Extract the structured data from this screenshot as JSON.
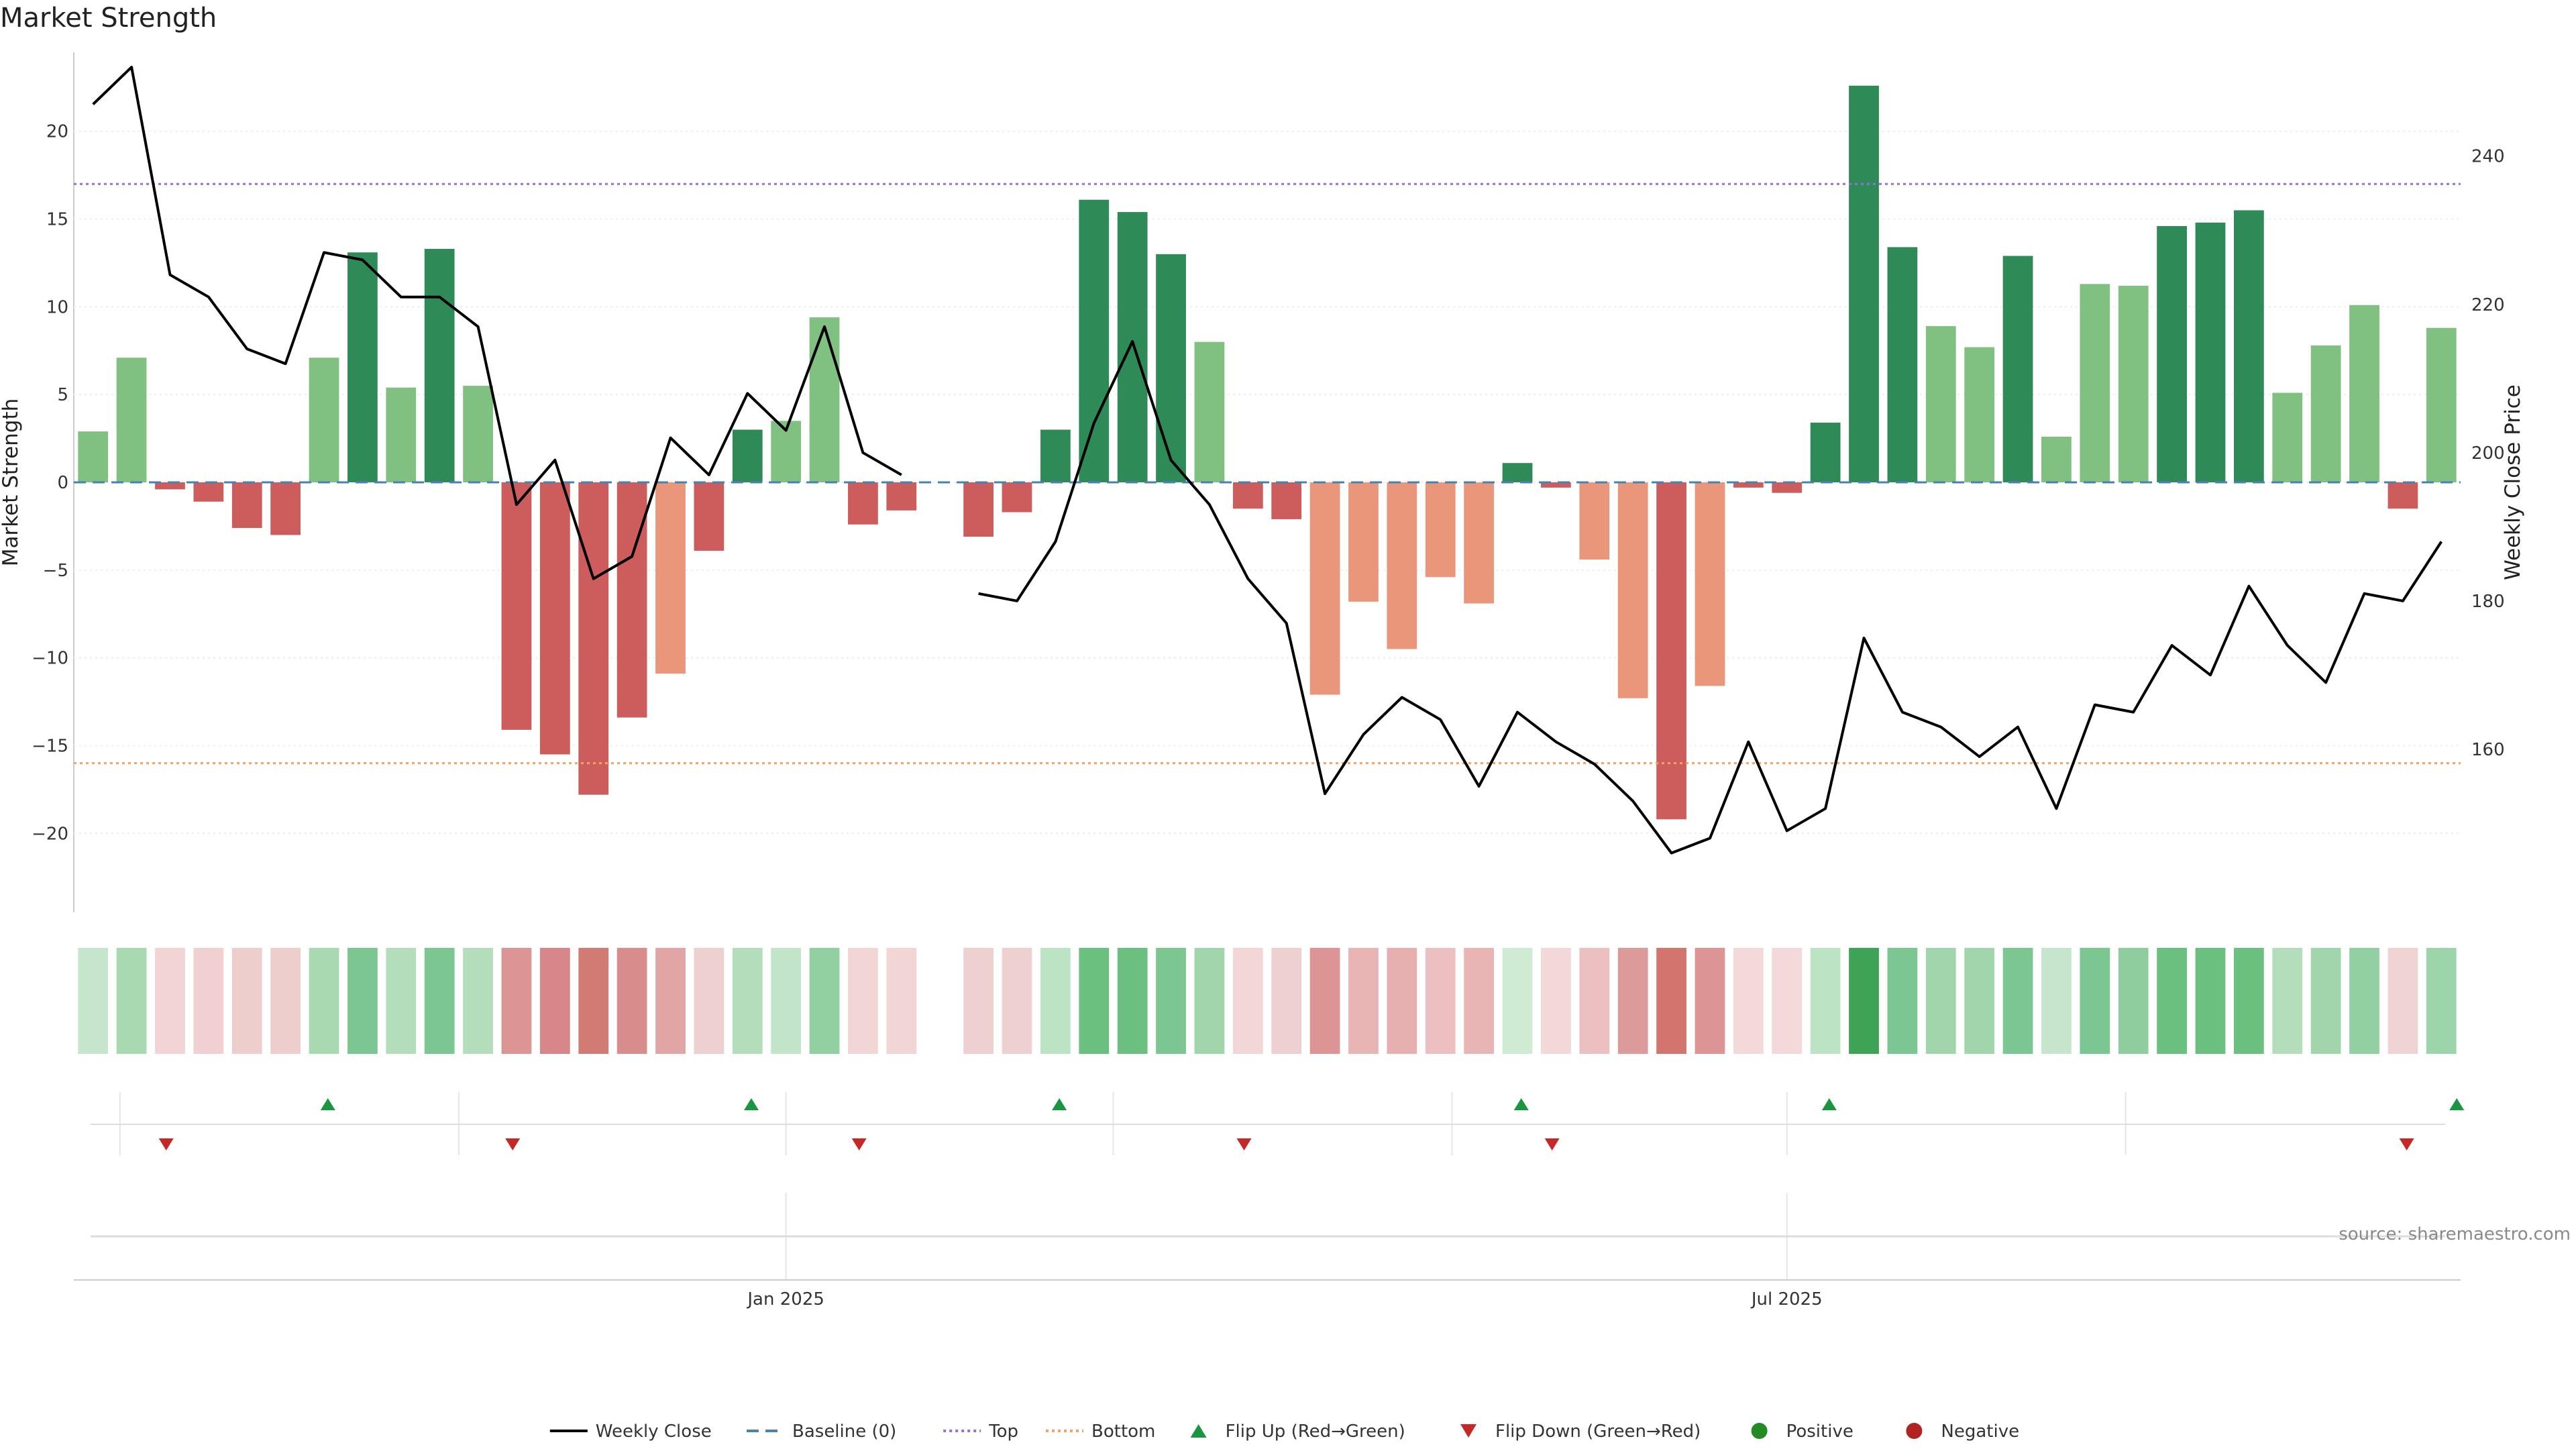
{
  "chart_data": {
    "type": "bar",
    "title": "Market Strength",
    "ylabel": "Market Strength",
    "y2label": "Weekly Close Price",
    "ylim": [
      -24.5,
      24.5
    ],
    "y2lim": [
      138,
      254
    ],
    "yticks": [
      -20,
      -15,
      -10,
      -5,
      0,
      5,
      10,
      15,
      20
    ],
    "y2ticks": [
      160,
      180,
      200,
      220,
      240
    ],
    "top_threshold": 17,
    "bottom_threshold": -16,
    "x_tick_labels": [
      {
        "label": "Jan 2025",
        "week": 18.5
      },
      {
        "label": "Jul 2025",
        "week": 44.5
      }
    ],
    "x_minor_weeks": [
      1.2,
      10,
      18.5,
      27,
      35.8,
      44.5,
      53.3
    ],
    "bars": [
      2.9,
      7.1,
      -0.4,
      -1.1,
      -2.6,
      -3.0,
      7.1,
      13.1,
      5.4,
      13.3,
      5.5,
      -14.1,
      -15.5,
      -17.8,
      -13.4,
      -10.9,
      -3.9,
      3.0,
      3.5,
      9.4,
      -2.4,
      -1.6,
      null,
      -3.1,
      -1.7,
      3.0,
      16.1,
      15.4,
      13.0,
      8.0,
      -1.5,
      -2.1,
      -12.1,
      -6.8,
      -9.5,
      -5.4,
      -6.9,
      1.1,
      -0.3,
      -4.4,
      -12.3,
      -19.2,
      -11.6,
      -0.3,
      -0.6,
      3.4,
      22.6,
      13.4,
      8.9,
      7.7,
      12.9,
      2.6,
      11.3,
      11.2,
      14.6,
      14.8,
      15.5,
      5.1,
      7.8,
      10.1,
      -1.5,
      8.8
    ],
    "close": [
      247,
      252,
      224,
      221,
      214,
      212,
      227,
      226,
      221,
      221,
      217,
      193,
      199,
      183,
      186,
      202,
      197,
      208,
      203,
      217,
      200,
      197,
      null,
      181,
      180,
      188,
      204,
      215,
      199,
      193,
      183,
      177,
      154,
      162,
      167,
      164,
      155,
      165,
      161,
      158,
      153,
      146,
      148,
      161,
      149,
      152,
      175,
      165,
      163,
      159,
      163,
      152,
      166,
      165,
      174,
      170,
      182,
      174,
      169,
      181,
      180,
      188
    ],
    "heat_colors": [
      "#c5e6cc",
      "#a8d9b1",
      "#f2d4d4",
      "#f0d0d0",
      "#eecdcd",
      "#eecdcd",
      "#a8d9b1",
      "#7cc691",
      "#b3ddbb",
      "#7cc691",
      "#b3ddbb",
      "#dd9494",
      "#d9868a",
      "#d27a74",
      "#d98c8c",
      "#e2a5a5",
      "#efd0d0",
      "#b3ddbb",
      "#c2e5ca",
      "#93d0a1",
      "#f2d6d6",
      "#f2d6d6",
      null,
      "#efd0d0",
      "#efd0d0",
      "#bde3c5",
      "#6bbf7f",
      "#6bbf7f",
      "#7cc691",
      "#a1d6ac",
      "#f3d6d6",
      "#efd0d0",
      "#dd9494",
      "#e8b4b4",
      "#e6b0b0",
      "#ecc0c0",
      "#e8b4b4",
      "#cfebd4",
      "#f2d8d8",
      "#ecc0c0",
      "#dd9a9a",
      "#d4746f",
      "#dd9494",
      "#f3d9d9",
      "#f3d9d9",
      "#bde3c5",
      "#3fa356",
      "#7cc691",
      "#a1d6ac",
      "#a1d6ac",
      "#7cc691",
      "#c5e6cc",
      "#7cc691",
      "#8fcc9e",
      "#6bbf7f",
      "#6bbf7f",
      "#6bbf7f",
      "#b3ddbb",
      "#a1d6ac",
      "#93d0a1",
      "#f0d3d3",
      "#9cd5a9"
    ],
    "flip_up_weeks": [
      6.6,
      17.6,
      25.6,
      37.6,
      45.6,
      61.9
    ],
    "flip_down_weeks": [
      2.4,
      11.4,
      20.4,
      30.4,
      38.4,
      60.6
    ],
    "colors": {
      "positive_strong": "#2e8b57",
      "positive_weak": "#80c080",
      "negative_strong": "#cd5c5c",
      "negative_weak": "#e9967a",
      "close_line": "#000000",
      "baseline": "#4682b4",
      "top": "#9370db",
      "bottom": "#f4a460",
      "flip_up": "#1a9641",
      "flip_down": "#c62828",
      "positive_dot": "#228b22",
      "negative_dot": "#b22222"
    },
    "legend": [
      {
        "label": "Weekly Close",
        "kind": "line-solid",
        "color_key": "close_line"
      },
      {
        "label": "Baseline (0)",
        "kind": "line-dash",
        "color_key": "baseline"
      },
      {
        "label": "Top",
        "kind": "line-dot",
        "color_key": "top"
      },
      {
        "label": "Bottom",
        "kind": "line-dot",
        "color_key": "bottom"
      },
      {
        "label": "Flip Up (Red→Green)",
        "kind": "tri-up",
        "color_key": "flip_up"
      },
      {
        "label": "Flip Down (Green→Red)",
        "kind": "tri-down",
        "color_key": "flip_down"
      },
      {
        "label": "Positive",
        "kind": "dot",
        "color_key": "positive_dot"
      },
      {
        "label": "Negative",
        "kind": "dot",
        "color_key": "negative_dot"
      }
    ],
    "source": "source: sharemaestro.com"
  }
}
